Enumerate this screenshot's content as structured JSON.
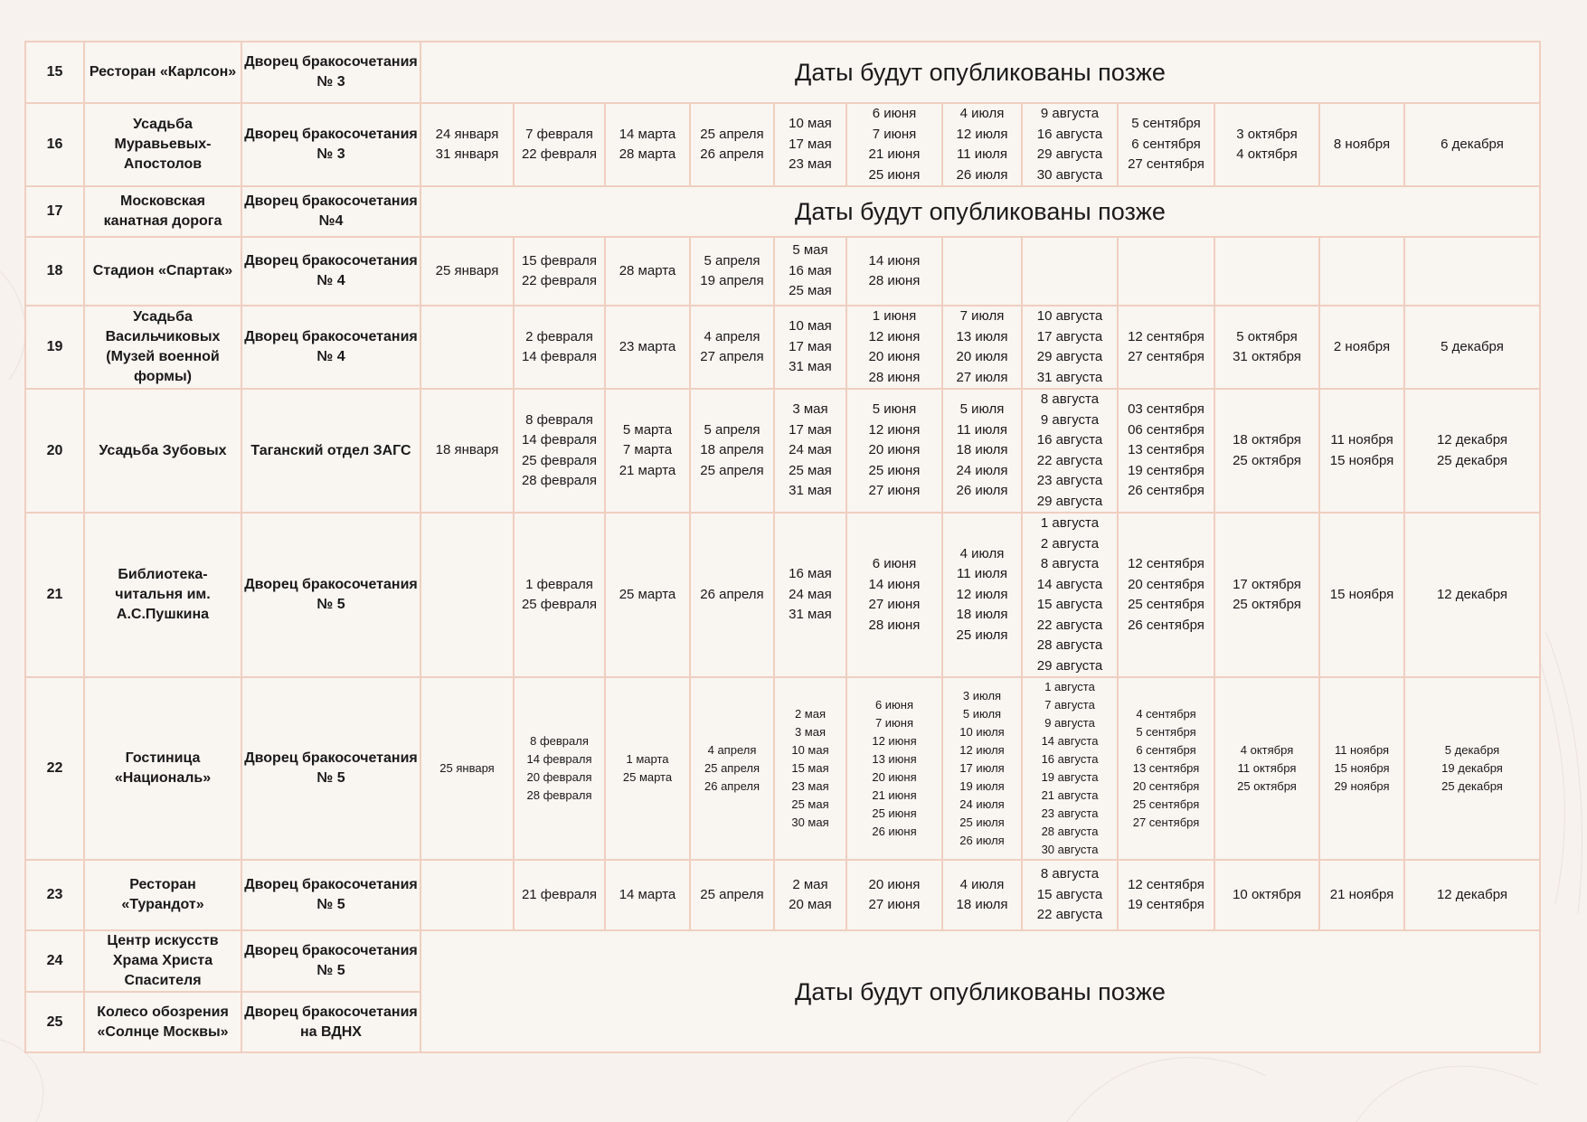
{
  "pending_message": "Даты будут опубликованы позже",
  "rows": [
    {
      "num": "15",
      "venue": "Ресторан «Карлсон»",
      "office": "Дворец бракосочетания № 3",
      "pending": true
    },
    {
      "num": "16",
      "venue": "Усадьба Муравьевых-Апостолов",
      "office": "Дворец бракосочетания № 3",
      "dates": [
        [
          "24 января",
          "31 января"
        ],
        [
          "7 февраля",
          "22 февраля"
        ],
        [
          "14 марта",
          "28 марта"
        ],
        [
          "25 апреля",
          "26 апреля"
        ],
        [
          "10 мая",
          "17 мая",
          "23 мая"
        ],
        [
          "6 июня",
          "7 июня",
          "21 июня",
          "25 июня"
        ],
        [
          "4 июля",
          "12 июля",
          "11 июля",
          "26 июля"
        ],
        [
          "9 августа",
          "16 августа",
          "29 августа",
          "30 августа"
        ],
        [
          "5 сентября",
          "6 сентября",
          "27 сентября"
        ],
        [
          "3 октября",
          "4 октября"
        ],
        [
          "8 ноября"
        ],
        [
          "6 декабря"
        ]
      ]
    },
    {
      "num": "17",
      "venue": "Московская канатная дорога",
      "office": "Дворец бракосочетания №4",
      "pending": true
    },
    {
      "num": "18",
      "venue": "Стадион «Спартак»",
      "office": "Дворец бракосочетания № 4",
      "dates": [
        [
          "25 января"
        ],
        [
          "15 февраля",
          "22 февраля"
        ],
        [
          "28 марта"
        ],
        [
          "5 апреля",
          "19 апреля"
        ],
        [
          "5 мая",
          "16 мая",
          "25 мая"
        ],
        [
          "14 июня",
          "28 июня"
        ],
        [],
        [],
        [],
        [],
        [],
        []
      ]
    },
    {
      "num": "19",
      "venue": "Усадьба Васильчиковых (Музей военной формы)",
      "office": "Дворец бракосочетания № 4",
      "dates": [
        [],
        [
          "2 февраля",
          "14 февраля"
        ],
        [
          "23 марта"
        ],
        [
          "4 апреля",
          "27 апреля"
        ],
        [
          "10 мая",
          "17 мая",
          "31 мая"
        ],
        [
          "1 июня",
          "12 июня",
          "20 июня",
          "28 июня"
        ],
        [
          "7 июля",
          "13 июля",
          "20 июля",
          "27 июля"
        ],
        [
          "10 августа",
          "17 августа",
          "29 августа",
          "31 августа"
        ],
        [
          "12 сентября",
          "27 сентября"
        ],
        [
          "5 октября",
          "31 октября"
        ],
        [
          "2 ноября"
        ],
        [
          "5 декабря"
        ]
      ]
    },
    {
      "num": "20",
      "venue": "Усадьба Зубовых",
      "office": "Таганский отдел ЗАГС",
      "dates": [
        [
          "18 января"
        ],
        [
          "8 февраля",
          "14 февраля",
          "25 февраля",
          "28 февраля"
        ],
        [
          "5 марта",
          "7 марта",
          "21 марта"
        ],
        [
          "5 апреля",
          "18 апреля",
          "25 апреля"
        ],
        [
          "3 мая",
          "17 мая",
          "24 мая",
          "25 мая",
          "31 мая"
        ],
        [
          "5 июня",
          "12 июня",
          "20 июня",
          "25 июня",
          "27 июня"
        ],
        [
          "5 июля",
          "11 июля",
          "18 июля",
          "24 июля",
          "26 июля"
        ],
        [
          "8 августа",
          "9 августа",
          "16 августа",
          "22 августа",
          "23 августа",
          "29 августа"
        ],
        [
          "03 сентября",
          "06 сентября",
          "13 сентября",
          "19 сентября",
          "26 сентября"
        ],
        [
          "18 октября",
          "25 октября"
        ],
        [
          "11 ноября",
          "15 ноября"
        ],
        [
          "12 декабря",
          "25 декабря"
        ]
      ]
    },
    {
      "num": "21",
      "venue": "Библиотека-читальня им. А.С.Пушкина",
      "office": "Дворец бракосочетания № 5",
      "dates": [
        [],
        [
          "1 февраля",
          "25 февраля"
        ],
        [
          "25 марта"
        ],
        [
          "26 апреля"
        ],
        [
          "16 мая",
          "24 мая",
          "31 мая"
        ],
        [
          "6 июня",
          "14 июня",
          "27 июня",
          "28 июня"
        ],
        [
          "4 июля",
          "11 июля",
          "12 июля",
          "18 июля",
          "25 июля"
        ],
        [
          "1 августа",
          "2 августа",
          "8 августа",
          "14 августа",
          "15 августа",
          "22 августа",
          "28 августа",
          "29 августа"
        ],
        [
          "12 сентября",
          "20 сентября",
          "25 сентября",
          "26 сентября"
        ],
        [
          "17 октября",
          "25 октября"
        ],
        [
          "15 ноября"
        ],
        [
          "12 декабря"
        ]
      ]
    },
    {
      "num": "22",
      "venue": "Гостиница «Националь»",
      "office": "Дворец бракосочетания № 5",
      "small": true,
      "dates": [
        [
          "25 января"
        ],
        [
          "8 февраля",
          "14 февраля",
          "20 февраля",
          "28 февраля"
        ],
        [
          "1 марта",
          "25 марта"
        ],
        [
          "4 апреля",
          "25 апреля",
          "26 апреля"
        ],
        [
          "2 мая",
          "3 мая",
          "10 мая",
          "15 мая",
          "23 мая",
          "25 мая",
          "30 мая"
        ],
        [
          "6 июня",
          "7 июня",
          "12 июня",
          "13 июня",
          "20 июня",
          "21 июня",
          "25 июня",
          "26 июня"
        ],
        [
          "3 июля",
          "5 июля",
          "10 июля",
          "12 июля",
          "17 июля",
          "19 июля",
          "24 июля",
          "25 июля",
          "26 июля"
        ],
        [
          "1 августа",
          "7 августа",
          "9 августа",
          "14 августа",
          "16 августа",
          "19 августа",
          "21 августа",
          "23 августа",
          "28 августа",
          "30 августа"
        ],
        [
          "4 сентября",
          "5 сентября",
          "6 сентября",
          "13 сентября",
          "20 сентября",
          "25 сентября",
          "27 сентября"
        ],
        [
          "4 октября",
          "11 октября",
          "25 октября"
        ],
        [
          "11 ноября",
          "15 ноября",
          "29 ноября"
        ],
        [
          "5 декабря",
          "19 декабря",
          "25 декабря"
        ]
      ]
    },
    {
      "num": "23",
      "venue": "Ресторан «Турандот»",
      "office": "Дворец бракосочетания № 5",
      "dates": [
        [],
        [
          "21 февраля"
        ],
        [
          "14 марта"
        ],
        [
          "25 апреля"
        ],
        [
          "2 мая",
          "20 мая"
        ],
        [
          "20 июня",
          "27 июня"
        ],
        [
          "4 июля",
          "18 июля"
        ],
        [
          "8 августа",
          "15 августа",
          "22 августа"
        ],
        [
          "12 сентября",
          "19 сентября"
        ],
        [
          "10 октября"
        ],
        [
          "21 ноября"
        ],
        [
          "12 декабря"
        ]
      ]
    },
    {
      "num": "24",
      "venue": "Центр искусств Храма Христа Спасителя",
      "office": "Дворец бракосочетания № 5",
      "pending": true
    },
    {
      "num": "25",
      "venue": "Колесо обозрения «Солнце Москвы»",
      "office": "Дворец бракосочетания на ВДНХ",
      "pending": true
    }
  ]
}
